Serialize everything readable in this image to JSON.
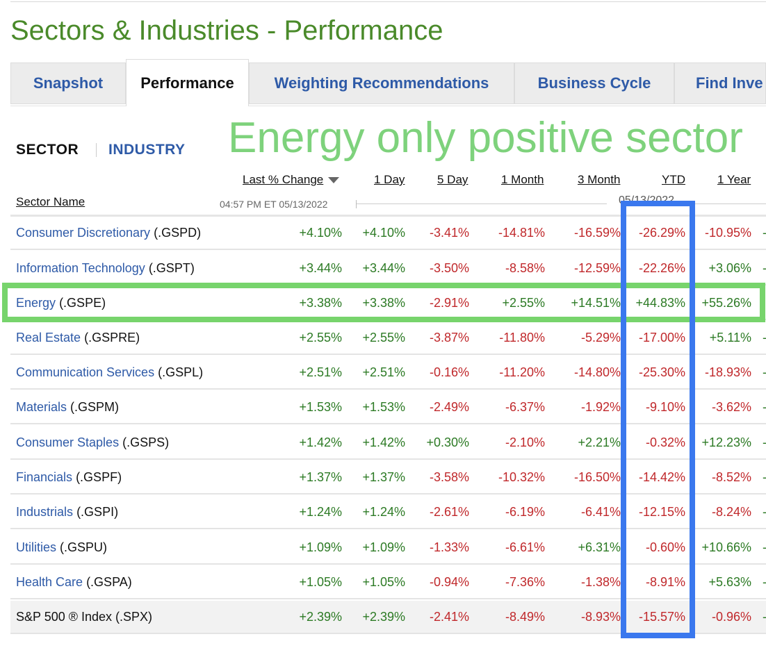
{
  "page_title": "Sectors & Industries - Performance",
  "tabs": [
    {
      "label": "Snapshot"
    },
    {
      "label": "Performance"
    },
    {
      "label": "Weighting Recommendations"
    },
    {
      "label": "Business Cycle"
    },
    {
      "label": "Find Inve"
    }
  ],
  "toggle": {
    "sector": "SECTOR",
    "industry": "INDUSTRY"
  },
  "annotation": "Energy only positive sector",
  "columns": {
    "sector_name": "Sector Name",
    "last_change": "Last % Change",
    "one_day": "1 Day",
    "five_day": "5 Day",
    "one_month": "1 Month",
    "three_month": "3 Month",
    "ytd": "YTD",
    "one_year": "1 Year"
  },
  "timestamp": "04:57 PM ET 05/13/2022",
  "date_label": "05/13/2022",
  "rows": [
    {
      "name": "Consumer Discretionary",
      "ticker": "(.GSPD)",
      "last": "+4.10%",
      "d1": "+4.10%",
      "d5": "-3.41%",
      "m1": "-14.81%",
      "m3": "-16.59%",
      "ytd": "-26.29%",
      "y1": "-10.95%",
      "edge": "-"
    },
    {
      "name": "Information Technology",
      "ticker": "(.GSPT)",
      "last": "+3.44%",
      "d1": "+3.44%",
      "d5": "-3.50%",
      "m1": "-8.58%",
      "m3": "-12.59%",
      "ytd": "-22.26%",
      "y1": "+3.06%",
      "edge": "-"
    },
    {
      "name": "Energy",
      "ticker": "(.GSPE)",
      "last": "+3.38%",
      "d1": "+3.38%",
      "d5": "-2.91%",
      "m1": "+2.55%",
      "m3": "+14.51%",
      "ytd": "+44.83%",
      "y1": "+55.26%",
      "edge": ""
    },
    {
      "name": "Real Estate",
      "ticker": "(.GSPRE)",
      "last": "+2.55%",
      "d1": "+2.55%",
      "d5": "-3.87%",
      "m1": "-11.80%",
      "m3": "-5.29%",
      "ytd": "-17.00%",
      "y1": "+5.11%",
      "edge": "-"
    },
    {
      "name": "Communication Services",
      "ticker": "(.GSPL)",
      "last": "+2.51%",
      "d1": "+2.51%",
      "d5": "-0.16%",
      "m1": "-11.20%",
      "m3": "-14.80%",
      "ytd": "-25.30%",
      "y1": "-18.93%",
      "edge": "-"
    },
    {
      "name": "Materials",
      "ticker": "(.GSPM)",
      "last": "+1.53%",
      "d1": "+1.53%",
      "d5": "-2.49%",
      "m1": "-6.37%",
      "m3": "-1.92%",
      "ytd": "-9.10%",
      "y1": "-3.62%",
      "edge": "-"
    },
    {
      "name": "Consumer Staples",
      "ticker": "(.GSPS)",
      "last": "+1.42%",
      "d1": "+1.42%",
      "d5": "+0.30%",
      "m1": "-2.10%",
      "m3": "+2.21%",
      "ytd": "-0.32%",
      "y1": "+12.23%",
      "edge": "-"
    },
    {
      "name": "Financials",
      "ticker": "(.GSPF)",
      "last": "+1.37%",
      "d1": "+1.37%",
      "d5": "-3.58%",
      "m1": "-10.32%",
      "m3": "-16.50%",
      "ytd": "-14.42%",
      "y1": "-8.52%",
      "edge": "-"
    },
    {
      "name": "Industrials",
      "ticker": "(.GSPI)",
      "last": "+1.24%",
      "d1": "+1.24%",
      "d5": "-2.61%",
      "m1": "-6.19%",
      "m3": "-6.41%",
      "ytd": "-12.15%",
      "y1": "-8.24%",
      "edge": "-"
    },
    {
      "name": "Utilities",
      "ticker": "(.GSPU)",
      "last": "+1.09%",
      "d1": "+1.09%",
      "d5": "-1.33%",
      "m1": "-6.61%",
      "m3": "+6.31%",
      "ytd": "-0.60%",
      "y1": "+10.66%",
      "edge": "-"
    },
    {
      "name": "Health Care",
      "ticker": "(.GSPA)",
      "last": "+1.05%",
      "d1": "+1.05%",
      "d5": "-0.94%",
      "m1": "-7.36%",
      "m3": "-1.38%",
      "ytd": "-8.91%",
      "y1": "+5.63%",
      "edge": "-"
    }
  ],
  "index_row": {
    "name": "S&P 500 ® Index (.SPX)",
    "last": "+2.39%",
    "d1": "+2.39%",
    "d5": "-2.41%",
    "m1": "-8.49%",
    "m3": "-8.93%",
    "ytd": "-15.57%",
    "y1": "-0.96%",
    "edge": "-"
  },
  "colors": {
    "positive": "#2c7a24",
    "negative": "#c0282b",
    "link": "#2e5aa7",
    "title": "#4a8a2a",
    "highlight_green": "#77d46c",
    "highlight_blue": "#3a78ee"
  }
}
